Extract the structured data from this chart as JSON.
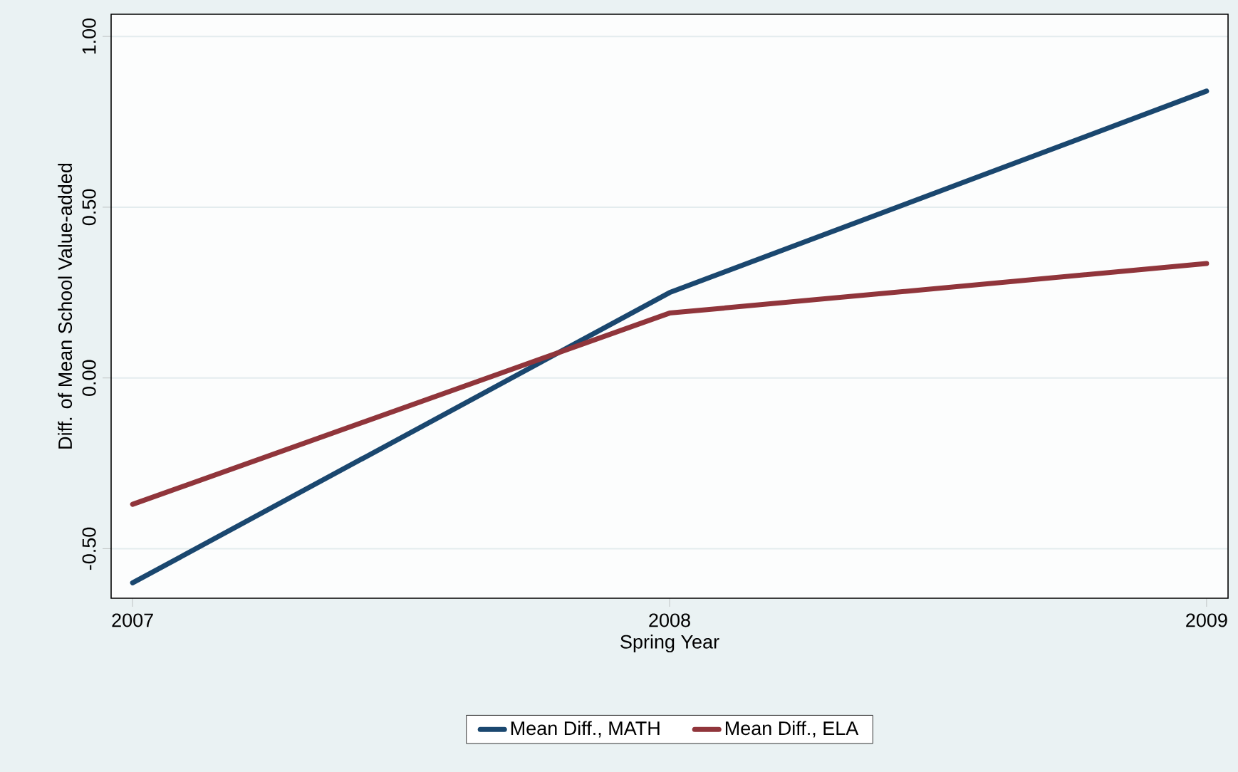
{
  "chart_data": {
    "type": "line",
    "xlabel": "Spring Year",
    "ylabel": "Diff. of Mean School Value-added",
    "x": [
      2007,
      2008,
      2009
    ],
    "series": [
      {
        "name": "Mean Diff., MATH",
        "color": "#1a476f",
        "values": [
          -0.6,
          0.25,
          0.84
        ]
      },
      {
        "name": "Mean Diff., ELA",
        "color": "#90353b",
        "values": [
          -0.37,
          0.19,
          0.335
        ]
      }
    ],
    "xlim": [
      2006.96,
      2009.04
    ],
    "ylim": [
      -0.645,
      1.065
    ],
    "xticks": [
      2007,
      2008,
      2009
    ],
    "yticks": [
      {
        "value": -0.5,
        "label": "-0.50"
      },
      {
        "value": 0,
        "label": "0.00"
      },
      {
        "value": 0.5,
        "label": "0.50"
      },
      {
        "value": 1,
        "label": "1.00"
      }
    ],
    "grid": "y",
    "legend": "bottom",
    "marker": "none",
    "line_style": "solid"
  }
}
